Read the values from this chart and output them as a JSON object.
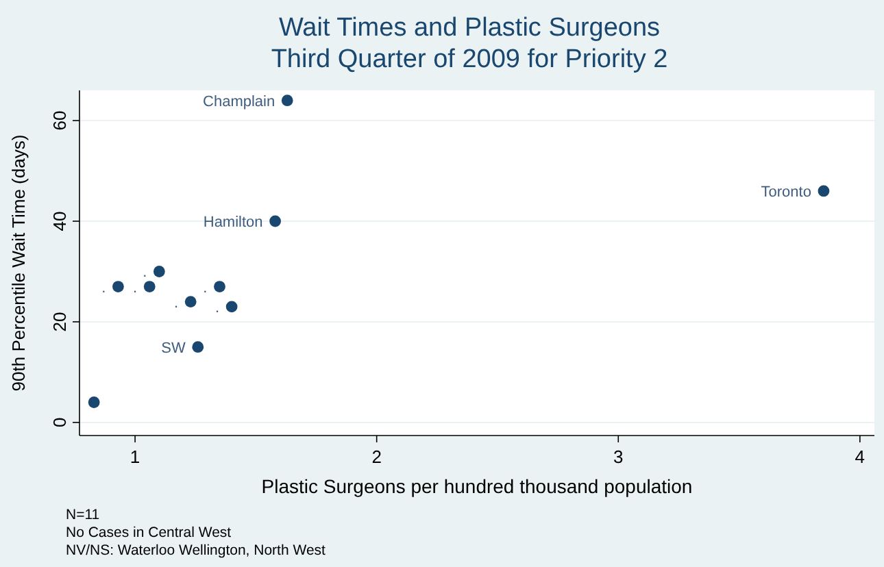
{
  "chart_data": {
    "type": "scatter",
    "title": "Wait Times and Plastic Surgeons",
    "subtitle": "Third Quarter of 2009 for Priority 2",
    "xlabel": "Plastic Surgeons per hundred thousand population",
    "ylabel": "90th Percentile Wait Time (days)",
    "x": [
      0.83,
      0.93,
      1.06,
      1.1,
      1.23,
      1.26,
      1.35,
      1.4,
      1.58,
      1.63,
      3.85
    ],
    "values": [
      4,
      27,
      27,
      30,
      24,
      15,
      27,
      23,
      40,
      64,
      46
    ],
    "color": "#1a476f",
    "marker": "circle",
    "grid": "y",
    "xlim": [
      0.77,
      4.06
    ],
    "ylim": [
      -2.6,
      66
    ],
    "xticks": [
      1,
      2,
      3,
      4
    ],
    "yticks": [
      0,
      20,
      40,
      60
    ],
    "annotations": [
      {
        "text": "Champlain",
        "x": 1.63,
        "y": 64
      },
      {
        "text": "Hamilton",
        "x": 1.58,
        "y": 40
      },
      {
        "text": "Toronto",
        "x": 3.85,
        "y": 46
      },
      {
        "text": "SW",
        "x": 1.26,
        "y": 15
      },
      {
        "text": ".",
        "x": 0.93,
        "y": 27
      },
      {
        "text": ".",
        "x": 1.06,
        "y": 27
      },
      {
        "text": ".",
        "x": 1.1,
        "y": 30
      },
      {
        "text": ".",
        "x": 1.23,
        "y": 24
      },
      {
        "text": ".",
        "x": 1.35,
        "y": 27
      },
      {
        "text": ".",
        "x": 1.4,
        "y": 23
      },
      "N=11",
      "No Cases in Central West",
      "NV/NS: Waterloo Wellington, North West"
    ]
  }
}
